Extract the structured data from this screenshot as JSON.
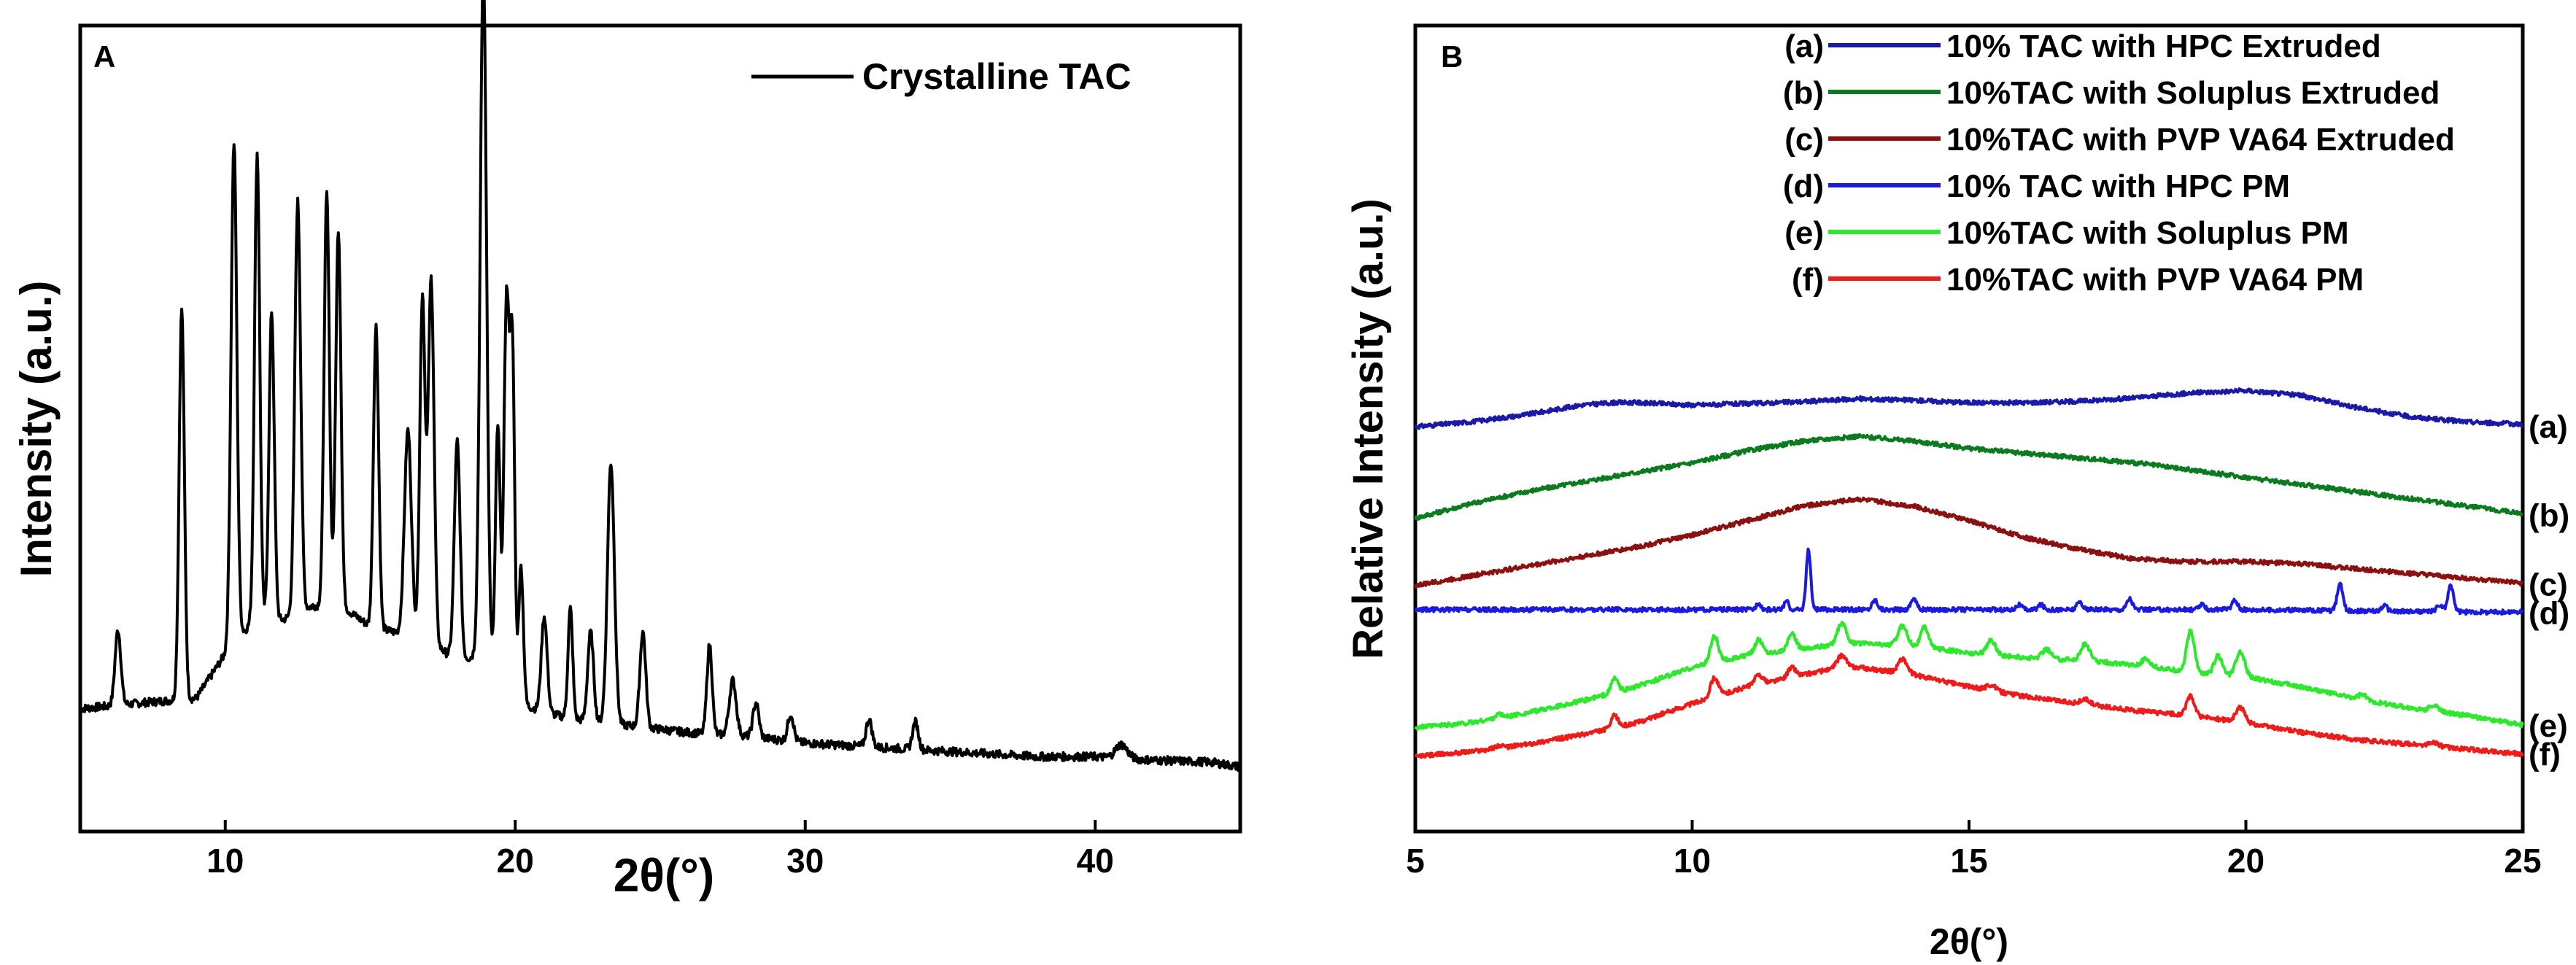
{
  "chart_data": [
    {
      "panel_label": "A",
      "type": "line",
      "title": "",
      "xlabel": "2θ(°)",
      "ylabel": "Intensity (a.u.)",
      "xlim": [
        5,
        45
      ],
      "ylim": [
        0,
        100
      ],
      "xticks": [
        10,
        20,
        30,
        40
      ],
      "xtick_labels": [
        "10",
        "20",
        "30",
        "40"
      ],
      "grid": false,
      "legend_position": "top-right",
      "legend": [
        "Crystalline TAC"
      ],
      "baseline_points": [
        [
          5.0,
          11
        ],
        [
          6.3,
          11.5
        ],
        [
          7.5,
          12
        ],
        [
          9.0,
          12.5
        ],
        [
          10.0,
          19
        ],
        [
          11.0,
          24
        ],
        [
          12.0,
          24
        ],
        [
          13.0,
          26
        ],
        [
          14.0,
          26
        ],
        [
          15.0,
          23
        ],
        [
          16.0,
          22
        ],
        [
          17.0,
          21
        ],
        [
          18.0,
          18
        ],
        [
          19.0,
          19
        ],
        [
          20.0,
          12
        ],
        [
          21.0,
          10.5
        ],
        [
          22.0,
          9.5
        ],
        [
          23.0,
          9
        ],
        [
          24.0,
          8.5
        ],
        [
          25.0,
          8
        ],
        [
          26.0,
          7.5
        ],
        [
          28.0,
          7
        ],
        [
          30.0,
          6
        ],
        [
          32.0,
          5.5
        ],
        [
          34.0,
          5
        ],
        [
          36.0,
          4.5
        ],
        [
          38.0,
          4
        ],
        [
          40.0,
          4
        ],
        [
          42.0,
          3.5
        ],
        [
          44.0,
          3.2
        ],
        [
          45.0,
          2.5
        ]
      ],
      "peaks": [
        [
          6.3,
          11,
          0.1
        ],
        [
          8.5,
          57,
          0.09
        ],
        [
          10.3,
          73,
          0.1
        ],
        [
          11.1,
          68,
          0.09
        ],
        [
          11.6,
          45,
          0.09
        ],
        [
          12.5,
          60,
          0.1
        ],
        [
          13.5,
          60,
          0.09
        ],
        [
          13.9,
          55,
          0.09
        ],
        [
          15.2,
          44,
          0.09
        ],
        [
          16.3,
          30,
          0.12
        ],
        [
          16.8,
          50,
          0.09
        ],
        [
          17.1,
          53,
          0.1
        ],
        [
          18.0,
          32,
          0.1
        ],
        [
          18.9,
          100,
          0.11
        ],
        [
          19.4,
          36,
          0.08
        ],
        [
          19.7,
          56,
          0.09
        ],
        [
          19.9,
          50,
          0.08
        ],
        [
          20.2,
          20,
          0.08
        ],
        [
          21.0,
          14,
          0.1
        ],
        [
          21.9,
          16,
          0.08
        ],
        [
          22.6,
          13,
          0.1
        ],
        [
          23.3,
          38,
          0.12
        ],
        [
          24.4,
          14,
          0.1
        ],
        [
          26.7,
          13,
          0.09
        ],
        [
          27.5,
          8,
          0.12
        ],
        [
          28.3,
          5,
          0.1
        ],
        [
          29.5,
          4,
          0.1
        ],
        [
          32.2,
          4,
          0.1
        ],
        [
          33.8,
          4,
          0.1
        ],
        [
          40.9,
          2,
          0.2
        ]
      ]
    },
    {
      "panel_label": "B",
      "type": "line",
      "title": "",
      "xlabel": "2θ(°)",
      "ylabel": "Relative Intensity (a.u.)",
      "xlim": [
        5,
        25
      ],
      "ylim": [
        0,
        100
      ],
      "xticks": [
        5,
        10,
        15,
        20,
        25
      ],
      "xtick_labels": [
        "5",
        "10",
        "15",
        "20",
        "25"
      ],
      "grid": false,
      "legend_position": "top-right",
      "series": [
        {
          "tag": "(a)",
          "name": "10% TAC with HPC Extruded",
          "color": "#1a1aa6",
          "points": [
            [
              5,
              75
            ],
            [
              6,
              76
            ],
            [
              7,
              77.5
            ],
            [
              8,
              79.5
            ],
            [
              8.6,
              80
            ],
            [
              9,
              80
            ],
            [
              10,
              79.5
            ],
            [
              11,
              79.8
            ],
            [
              12,
              80.2
            ],
            [
              13,
              80.8
            ],
            [
              14,
              80.5
            ],
            [
              15,
              80
            ],
            [
              16,
              80
            ],
            [
              17,
              80.3
            ],
            [
              18,
              81
            ],
            [
              19,
              82
            ],
            [
              20,
              82.5
            ],
            [
              21,
              81.5
            ],
            [
              22,
              79
            ],
            [
              23,
              77
            ],
            [
              24,
              76
            ],
            [
              25,
              75.5
            ]
          ],
          "peaks": []
        },
        {
          "tag": "(b)",
          "name": "10%TAC with Soluplus Extruded",
          "color": "#0c7a1e",
          "points": [
            [
              5,
              56
            ],
            [
              6,
              59
            ],
            [
              7,
              61.5
            ],
            [
              8,
              63.5
            ],
            [
              9,
              65.5
            ],
            [
              10,
              67.5
            ],
            [
              11,
              70
            ],
            [
              12,
              72
            ],
            [
              13,
              73
            ],
            [
              14,
              72
            ],
            [
              15,
              70.5
            ],
            [
              16,
              69.5
            ],
            [
              17,
              68.5
            ],
            [
              18,
              67.5
            ],
            [
              19,
              66
            ],
            [
              20,
              64.5
            ],
            [
              21,
              63
            ],
            [
              22,
              61.5
            ],
            [
              23,
              60
            ],
            [
              24,
              58.5
            ],
            [
              25,
              57
            ]
          ],
          "peaks": []
        },
        {
          "tag": "(c)",
          "name": "10%TAC with PVP VA64 Extruded",
          "color": "#8b1010",
          "points": [
            [
              5,
              42
            ],
            [
              6,
              44
            ],
            [
              7,
              46
            ],
            [
              8,
              48
            ],
            [
              9,
              50
            ],
            [
              10,
              52.5
            ],
            [
              11,
              55.5
            ],
            [
              12,
              58.5
            ],
            [
              13,
              60
            ],
            [
              14,
              58.5
            ],
            [
              15,
              55.5
            ],
            [
              16,
              52
            ],
            [
              17,
              49.5
            ],
            [
              18,
              47.5
            ],
            [
              19,
              47
            ],
            [
              20,
              47
            ],
            [
              21,
              46.5
            ],
            [
              22,
              45.5
            ],
            [
              23,
              44.5
            ],
            [
              24,
              43.5
            ],
            [
              25,
              42.5
            ]
          ],
          "peaks": []
        },
        {
          "tag": "(d)",
          "name": "10% TAC with HPC PM",
          "color": "#1b1be0",
          "points": [
            [
              5,
              37
            ],
            [
              10,
              37
            ],
            [
              15,
              37
            ],
            [
              20,
              37
            ],
            [
              24,
              36.5
            ],
            [
              25,
              36.5
            ]
          ],
          "peaks": [
            [
              11.2,
              1.5,
              0.04
            ],
            [
              11.7,
              1.8,
              0.04
            ],
            [
              12.1,
              12.5,
              0.04
            ],
            [
              13.3,
              2,
              0.05
            ],
            [
              14.0,
              2.4,
              0.05
            ],
            [
              15.9,
              1,
              0.05
            ],
            [
              16.3,
              1,
              0.05
            ],
            [
              17.0,
              1.6,
              0.05
            ],
            [
              17.9,
              2.3,
              0.05
            ],
            [
              19.2,
              1,
              0.05
            ],
            [
              19.8,
              2,
              0.05
            ],
            [
              21.7,
              5.5,
              0.05
            ],
            [
              22.5,
              1.2,
              0.05
            ],
            [
              23.5,
              1.3,
              0.06
            ],
            [
              23.7,
              5.5,
              0.05
            ]
          ]
        },
        {
          "tag": "(e)",
          "name": "10%TAC with Soluplus PM",
          "color": "#2ee82e",
          "points": [
            [
              5,
              12.5
            ],
            [
              6,
              13.5
            ],
            [
              7,
              15.5
            ],
            [
              8,
              18
            ],
            [
              9,
              21
            ],
            [
              10,
              25
            ],
            [
              11,
              27.5
            ],
            [
              12,
              29
            ],
            [
              13,
              30
            ],
            [
              14,
              29.5
            ],
            [
              15,
              28
            ],
            [
              16,
              27
            ],
            [
              17,
              26.5
            ],
            [
              18,
              25.5
            ],
            [
              19,
              24
            ],
            [
              20,
              23
            ],
            [
              21,
              21
            ],
            [
              22,
              18.5
            ],
            [
              23,
              16.5
            ],
            [
              24,
              15
            ],
            [
              25,
              13
            ]
          ],
          "peaks": [
            [
              6.5,
              0.8,
              0.06
            ],
            [
              8.6,
              3,
              0.06
            ],
            [
              10.4,
              5.5,
              0.07
            ],
            [
              11.2,
              3,
              0.07
            ],
            [
              11.8,
              3.2,
              0.07
            ],
            [
              12.7,
              4.5,
              0.08
            ],
            [
              13.8,
              4,
              0.08
            ],
            [
              14.2,
              4.2,
              0.07
            ],
            [
              15.4,
              3,
              0.08
            ],
            [
              16.4,
              2,
              0.08
            ],
            [
              17.1,
              3.5,
              0.08
            ],
            [
              18.2,
              1.5,
              0.08
            ],
            [
              19.0,
              8.5,
              0.07
            ],
            [
              19.5,
              4,
              0.07
            ],
            [
              19.9,
              5,
              0.08
            ],
            [
              22.1,
              1,
              0.08
            ],
            [
              23.4,
              1.2,
              0.08
            ]
          ]
        },
        {
          "tag": "(f)",
          "name": "10%TAC with PVP VA64 PM",
          "color": "#ee1b1b",
          "points": [
            [
              5,
              6.5
            ],
            [
              6,
              7.5
            ],
            [
              7,
              9
            ],
            [
              8,
              11
            ],
            [
              9,
              13.5
            ],
            [
              10,
              17.5
            ],
            [
              11,
              21
            ],
            [
              12,
              23.5
            ],
            [
              12.7,
              25
            ],
            [
              13,
              25
            ],
            [
              14,
              23.5
            ],
            [
              15,
              21
            ],
            [
              16,
              19
            ],
            [
              17,
              17.5
            ],
            [
              18,
              16
            ],
            [
              19,
              15
            ],
            [
              20,
              13.5
            ],
            [
              21,
              11.5
            ],
            [
              22,
              10
            ],
            [
              23,
              9
            ],
            [
              24,
              8
            ],
            [
              25,
              7
            ]
          ],
          "peaks": [
            [
              6.5,
              0.5,
              0.06
            ],
            [
              8.6,
              2.5,
              0.06
            ],
            [
              10.4,
              4,
              0.07
            ],
            [
              11.2,
              2,
              0.07
            ],
            [
              11.8,
              2,
              0.07
            ],
            [
              12.7,
              2.5,
              0.08
            ],
            [
              13.8,
              3,
              0.08
            ],
            [
              15.4,
              1.2,
              0.08
            ],
            [
              17.1,
              1,
              0.08
            ],
            [
              19.0,
              4,
              0.07
            ],
            [
              19.9,
              3,
              0.08
            ],
            [
              23.4,
              0.8,
              0.08
            ]
          ]
        }
      ]
    }
  ]
}
